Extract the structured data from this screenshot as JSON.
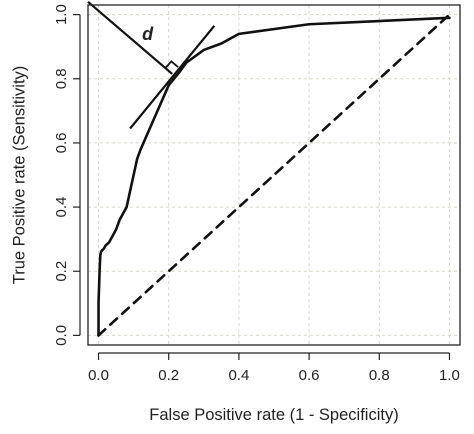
{
  "chart_data": {
    "type": "line",
    "xlabel": "False Positive rate (1 - Specificity)",
    "ylabel": "True Positive rate (Sensitivity)",
    "xlim": [
      -0.03,
      1.03
    ],
    "ylim": [
      -0.03,
      1.03
    ],
    "x_ticks": [
      0.0,
      0.2,
      0.4,
      0.6,
      0.8,
      1.0
    ],
    "y_ticks": [
      0.0,
      0.2,
      0.4,
      0.6,
      0.8,
      1.0
    ],
    "x_tick_labels": [
      "0.0",
      "0.2",
      "0.4",
      "0.6",
      "0.8",
      "1.0"
    ],
    "y_tick_labels": [
      "0.0",
      "0.2",
      "0.4",
      "0.6",
      "0.8",
      "1.0"
    ],
    "grid": true,
    "series": [
      {
        "style": "solid",
        "x": [
          0.0,
          0.0,
          0.003,
          0.005,
          0.007,
          0.01,
          0.015,
          0.02,
          0.03,
          0.04,
          0.05,
          0.06,
          0.07,
          0.08,
          0.09,
          0.1,
          0.11,
          0.12,
          0.14,
          0.16,
          0.18,
          0.2,
          0.23,
          0.25,
          0.3,
          0.35,
          0.4,
          0.6,
          1.0
        ],
        "y": [
          0.0,
          0.1,
          0.2,
          0.25,
          0.26,
          0.265,
          0.27,
          0.28,
          0.29,
          0.31,
          0.33,
          0.36,
          0.38,
          0.4,
          0.45,
          0.5,
          0.55,
          0.58,
          0.63,
          0.68,
          0.73,
          0.78,
          0.82,
          0.85,
          0.89,
          0.91,
          0.94,
          0.97,
          0.99
        ]
      },
      {
        "style": "dashed",
        "x": [
          0.0,
          1.0
        ],
        "y": [
          0.0,
          1.0
        ]
      }
    ],
    "annotations": {
      "distance_line": {
        "x": [
          -0.03,
          0.21
        ],
        "y": [
          1.04,
          0.815
        ]
      },
      "tangent_line": {
        "x": [
          0.09,
          0.33
        ],
        "y": [
          0.645,
          0.965
        ]
      },
      "right_angle_at": {
        "x": 0.21,
        "y": 0.815
      },
      "label": "d",
      "label_at": {
        "x": 0.14,
        "y": 0.94
      }
    }
  }
}
